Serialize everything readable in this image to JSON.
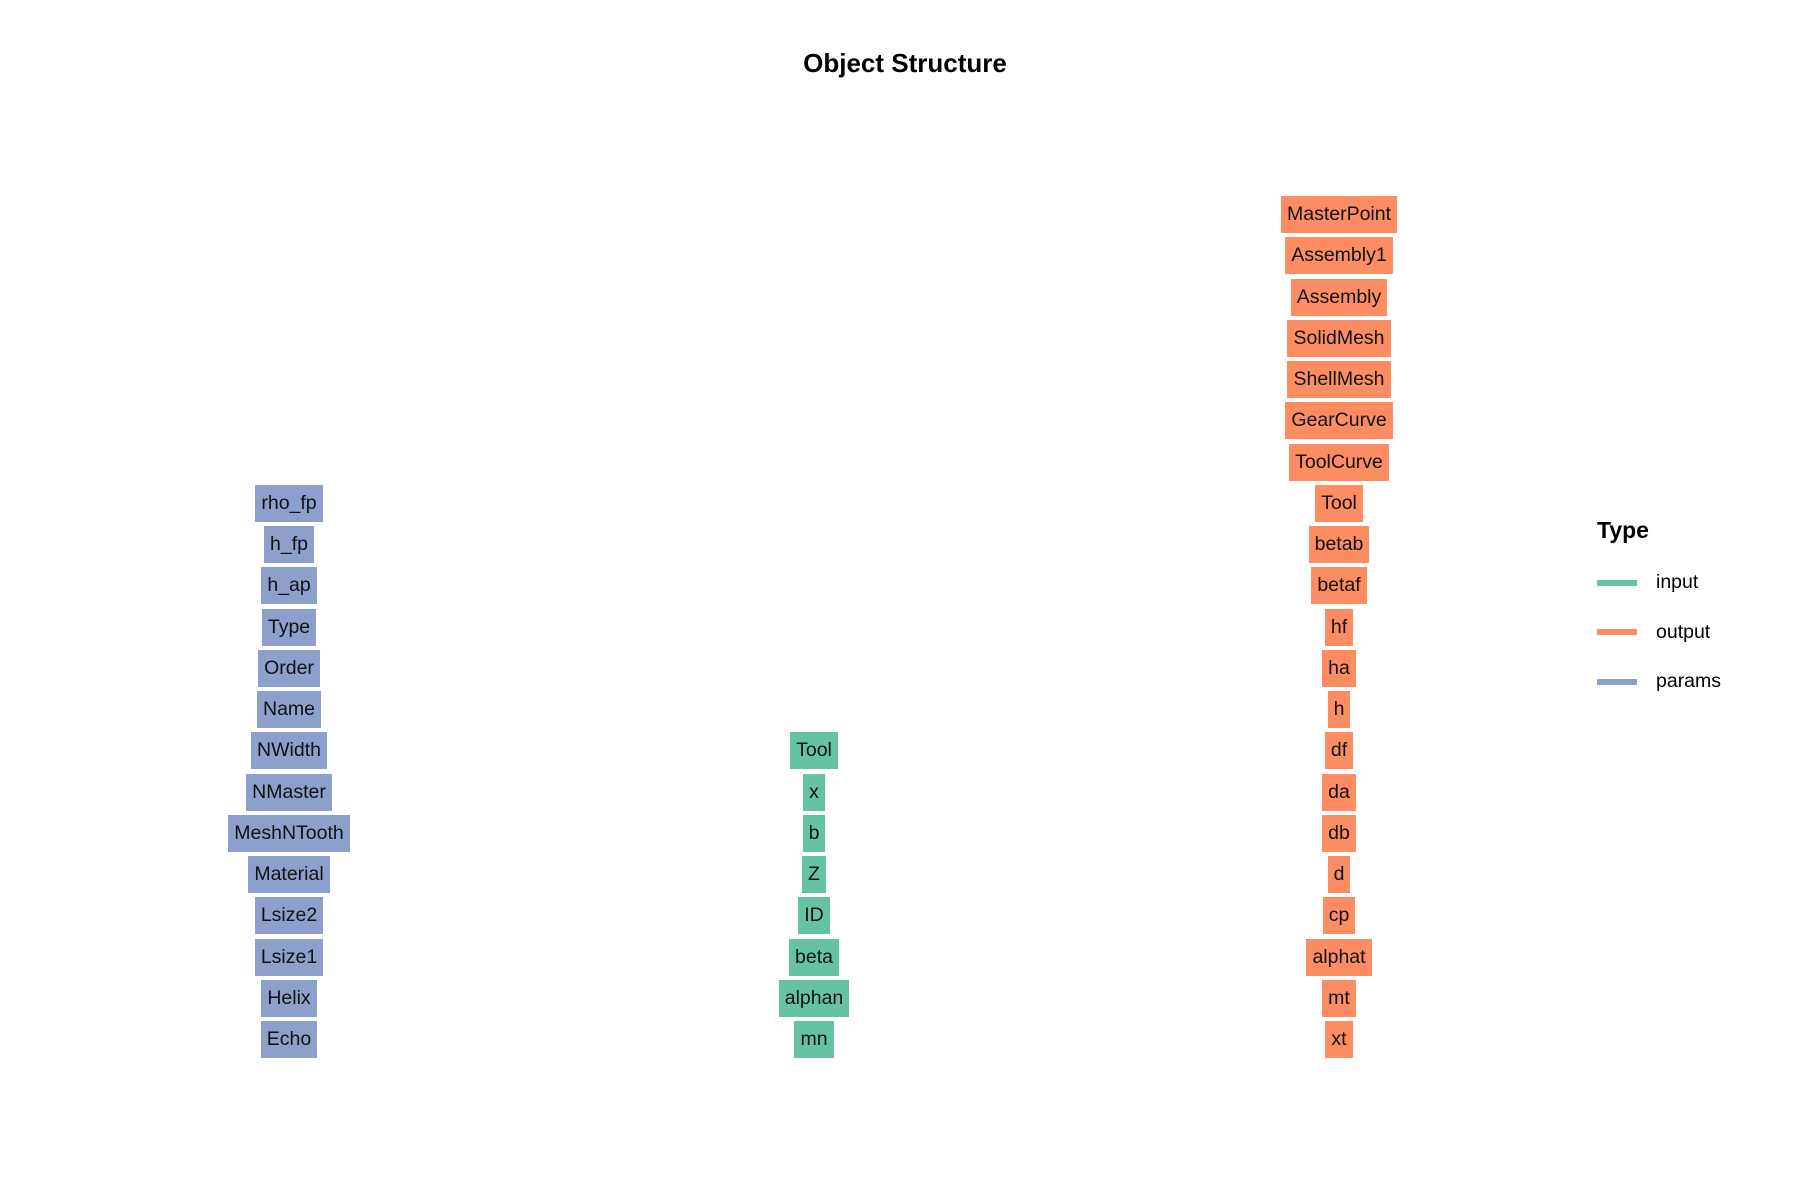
{
  "title": "Object Structure",
  "legend": {
    "title": "Type",
    "items": [
      {
        "label": "input",
        "color": "#66c2a5"
      },
      {
        "label": "output",
        "color": "#fc8d62"
      },
      {
        "label": "params",
        "color": "#8da0cb"
      }
    ]
  },
  "columns": {
    "params": {
      "color": "#8da0cb",
      "nodes": [
        "Echo",
        "Helix",
        "Lsize1",
        "Lsize2",
        "Material",
        "MeshNTooth",
        "NMaster",
        "NWidth",
        "Name",
        "Order",
        "Type",
        "h_ap",
        "h_fp",
        "rho_fp"
      ]
    },
    "input": {
      "color": "#66c2a5",
      "nodes": [
        "mn",
        "alphan",
        "beta",
        "ID",
        "Z",
        "b",
        "x",
        "Tool"
      ]
    },
    "output": {
      "color": "#fc8d62",
      "nodes": [
        "xt",
        "mt",
        "alphat",
        "cp",
        "d",
        "db",
        "da",
        "df",
        "h",
        "ha",
        "hf",
        "betaf",
        "betab",
        "Tool",
        "ToolCurve",
        "GearCurve",
        "ShellMesh",
        "SolidMesh",
        "Assembly",
        "Assembly1",
        "MasterPoint"
      ]
    }
  }
}
